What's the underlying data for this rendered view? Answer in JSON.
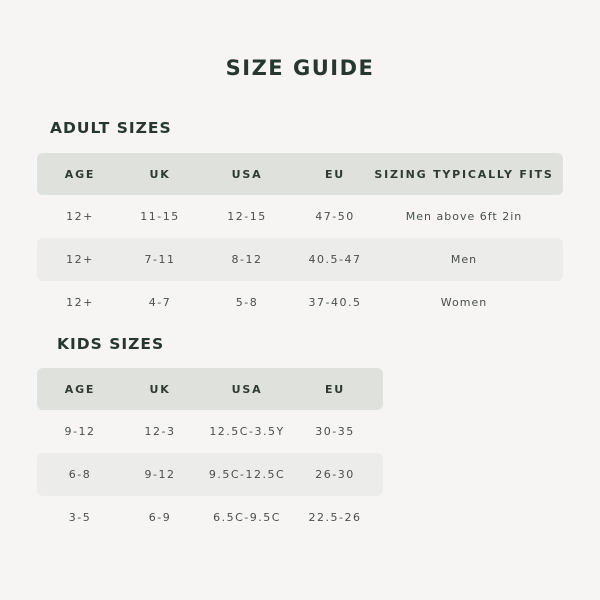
{
  "title": "SIZE GUIDE",
  "adult": {
    "heading": "ADULT SIZES",
    "headers": [
      "AGE",
      "UK",
      "USA",
      "EU",
      "SIZING TYPICALLY FITS"
    ],
    "rows": [
      [
        "12+",
        "11-15",
        "12-15",
        "47-50",
        "Men above 6ft 2in"
      ],
      [
        "12+",
        "7-11",
        "8-12",
        "40.5-47",
        "Men"
      ],
      [
        "12+",
        "4-7",
        "5-8",
        "37-40.5",
        "Women"
      ]
    ]
  },
  "kids": {
    "heading": "KIDS SIZES",
    "headers": [
      "AGE",
      "UK",
      "USA",
      "EU"
    ],
    "rows": [
      [
        "9-12",
        "12-3",
        "12.5C-3.5Y",
        "30-35"
      ],
      [
        "6-8",
        "9-12",
        "9.5C-12.5C",
        "26-30"
      ],
      [
        "3-5",
        "6-9",
        "6.5C-9.5C",
        "22.5-26"
      ]
    ]
  },
  "colors": {
    "background": "#f6f5f3",
    "header_row": "#dfe1dc",
    "alt_row": "#ececea",
    "heading_text": "#27362e"
  }
}
